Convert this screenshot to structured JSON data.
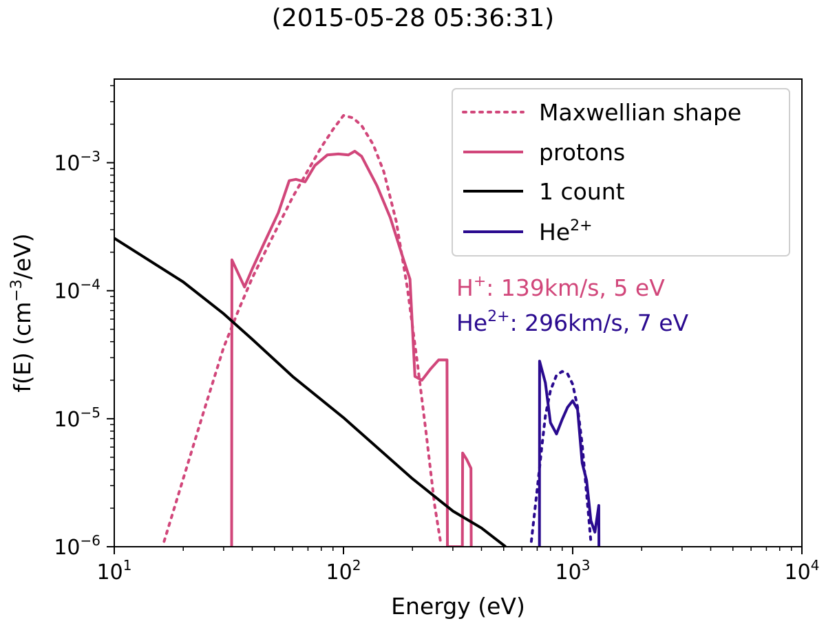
{
  "page": {
    "title": "(2015-05-28 05:36:31)"
  },
  "chart_data": {
    "type": "line",
    "title": "(2015-05-28 05:36:31)",
    "xlabel": "Energy (eV)",
    "ylabel_parts": {
      "pre": "f(E) (cm",
      "sup": "−3",
      "post": "/eV)"
    },
    "xscale": "log",
    "yscale": "log",
    "xlim": [
      10,
      10000
    ],
    "ylim": [
      1e-06,
      0.0045
    ],
    "x_ticks": [
      {
        "value": 10,
        "base": "10",
        "exp": "1"
      },
      {
        "value": 100,
        "base": "10",
        "exp": "2"
      },
      {
        "value": 1000,
        "base": "10",
        "exp": "3"
      },
      {
        "value": 10000,
        "base": "10",
        "exp": "4"
      }
    ],
    "y_ticks": [
      {
        "value": 1e-06,
        "base": "10",
        "exp": "−6"
      },
      {
        "value": 1e-05,
        "base": "10",
        "exp": "−5"
      },
      {
        "value": 0.0001,
        "base": "10",
        "exp": "−4"
      },
      {
        "value": 0.001,
        "base": "10",
        "exp": "−3"
      }
    ],
    "colors": {
      "protons": "#d1467a",
      "helium": "#2a0a8f",
      "count": "#000000"
    },
    "legend": {
      "position": "top-right",
      "entries": [
        {
          "label": "Maxwellian shape",
          "style": "dotted",
          "color": "#d1467a"
        },
        {
          "label": "protons",
          "style": "solid",
          "color": "#d1467a"
        },
        {
          "label": "1 count",
          "style": "solid",
          "color": "#000000"
        },
        {
          "label_base": "He",
          "label_sup": "2+",
          "style": "solid",
          "color": "#2a0a8f"
        }
      ]
    },
    "annotations": [
      {
        "base": "H",
        "sup": "+",
        "text": ": 139km/s, 5 eV",
        "color": "#d1467a"
      },
      {
        "base": "He",
        "sup": "2+",
        "text": ": 296km/s, 7 eV",
        "color": "#2a0a8f"
      }
    ],
    "series": [
      {
        "name": "Maxwellian shape (protons)",
        "style": "dotted",
        "color": "#d1467a",
        "x": [
          16.5,
          20,
          25,
          30,
          35,
          40,
          50,
          60,
          70,
          80,
          90,
          100,
          110,
          120,
          135,
          150,
          170,
          190,
          210,
          230,
          250,
          265
        ],
        "y": [
          1.1e-06,
          3.4e-06,
          1.26e-05,
          3.6e-05,
          7.2e-05,
          0.000126,
          0.000282,
          0.000537,
          0.000871,
          0.00132,
          0.00182,
          0.00234,
          0.00224,
          0.00195,
          0.00138,
          0.00085,
          0.000347,
          0.000105,
          2.75e-05,
          7.4e-06,
          2.1e-06,
          1.1e-06
        ]
      },
      {
        "name": "protons",
        "style": "solid",
        "color": "#d1467a",
        "x": [
          32.5,
          32.6,
          37,
          40,
          45,
          52,
          58,
          62,
          68,
          75,
          85,
          95,
          105,
          112,
          120,
          140,
          160,
          180,
          195,
          205,
          220,
          240,
          260,
          283,
          284,
          330,
          331,
          345,
          360,
          361
        ],
        "y": [
          1e-06,
          0.000174,
          0.000107,
          0.000148,
          0.000234,
          0.000407,
          0.000724,
          0.000741,
          0.000708,
          0.00095,
          0.00115,
          0.00117,
          0.00115,
          0.00123,
          0.00112,
          0.00066,
          0.000372,
          0.000191,
          0.000123,
          2.14e-05,
          2e-05,
          2.45e-05,
          2.88e-05,
          2.88e-05,
          1e-06,
          1e-06,
          5.4e-06,
          4.8e-06,
          4.1e-06,
          1e-06
        ]
      },
      {
        "name": "1 count",
        "style": "solid",
        "color": "#000000",
        "x": [
          10,
          20,
          30,
          40,
          60,
          100,
          200,
          300,
          400,
          510
        ],
        "y": [
          0.000257,
          0.000117,
          6.61e-05,
          4.17e-05,
          2.14e-05,
          1.02e-05,
          3.4e-06,
          1.9e-06,
          1.4e-06,
          1e-06
        ]
      },
      {
        "name": "Maxwellian shape (He2+)",
        "style": "dotted",
        "color": "#2a0a8f",
        "x": [
          660,
          700,
          730,
          760,
          800,
          850,
          900,
          950,
          1000,
          1050,
          1100,
          1150,
          1200
        ],
        "y": [
          1.1e-06,
          2.8e-06,
          5.6e-06,
          1.05e-05,
          1.66e-05,
          2.19e-05,
          2.34e-05,
          2.24e-05,
          1.86e-05,
          1.23e-05,
          6.3e-06,
          2.6e-06,
          1.1e-06
        ]
      },
      {
        "name": "He2+",
        "style": "solid",
        "color": "#2a0a8f",
        "x": [
          716,
          717,
          760,
          800,
          850,
          900,
          950,
          1000,
          1050,
          1100,
          1150,
          1200,
          1250,
          1300,
          1301
        ],
        "y": [
          1e-06,
          2.82e-05,
          1.91e-05,
          9.3e-06,
          7.6e-06,
          9.9e-06,
          1.23e-05,
          1.38e-05,
          1.18e-05,
          4.5e-06,
          3.3e-06,
          1.6e-06,
          1.3e-06,
          2.1e-06,
          1e-06
        ]
      }
    ]
  }
}
